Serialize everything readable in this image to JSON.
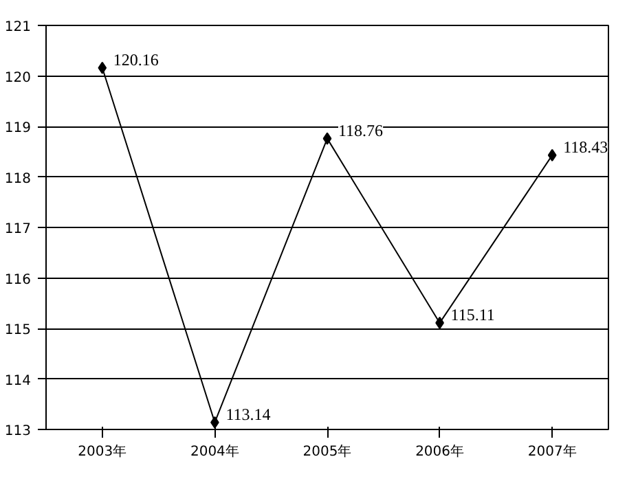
{
  "chart_data": {
    "type": "line",
    "categories": [
      "2003年",
      "2004年",
      "2005年",
      "2006年",
      "2007年"
    ],
    "series": [
      {
        "color": "#000000",
        "values": [
          120.16,
          113.14,
          118.76,
          115.11,
          118.43
        ]
      }
    ],
    "ylim": [
      113,
      121
    ],
    "yticks": [
      113,
      114,
      115,
      116,
      117,
      118,
      119,
      120,
      121
    ],
    "grid": "y",
    "marker": "diamond",
    "line_style": "solid",
    "data_labels": true
  }
}
